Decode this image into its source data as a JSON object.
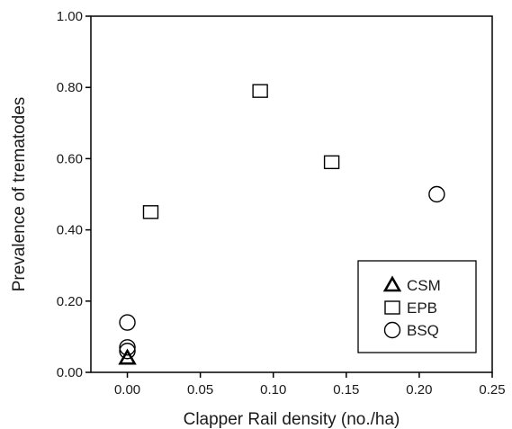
{
  "chart_data": {
    "type": "scatter",
    "title": "",
    "xlabel": "Clapper Rail density (no./ha)",
    "ylabel": "Prevalence of trematodes",
    "xlim": [
      -0.025,
      0.25
    ],
    "ylim": [
      0.0,
      1.0
    ],
    "x_ticks": [
      "0.00",
      "0.05",
      "0.10",
      "0.15",
      "0.20",
      "0.25"
    ],
    "y_ticks": [
      "0.00",
      "0.20",
      "0.40",
      "0.60",
      "0.80",
      "1.00"
    ],
    "x_tick_values": [
      0.0,
      0.05,
      0.1,
      0.15,
      0.2,
      0.25
    ],
    "y_tick_values": [
      0.0,
      0.2,
      0.4,
      0.6,
      0.8,
      1.0
    ],
    "grid": false,
    "legend_position": "bottom-right",
    "series": [
      {
        "name": "CSM",
        "marker": "triangle",
        "points": [
          {
            "x": 0.0,
            "y": 0.04
          }
        ]
      },
      {
        "name": "EPB",
        "marker": "square",
        "points": [
          {
            "x": 0.016,
            "y": 0.45
          },
          {
            "x": 0.091,
            "y": 0.79
          },
          {
            "x": 0.14,
            "y": 0.59
          }
        ]
      },
      {
        "name": "BSQ",
        "marker": "circle",
        "points": [
          {
            "x": 0.0,
            "y": 0.14
          },
          {
            "x": 0.0,
            "y": 0.07
          },
          {
            "x": 0.0,
            "y": 0.06
          },
          {
            "x": 0.212,
            "y": 0.5
          }
        ]
      }
    ]
  }
}
